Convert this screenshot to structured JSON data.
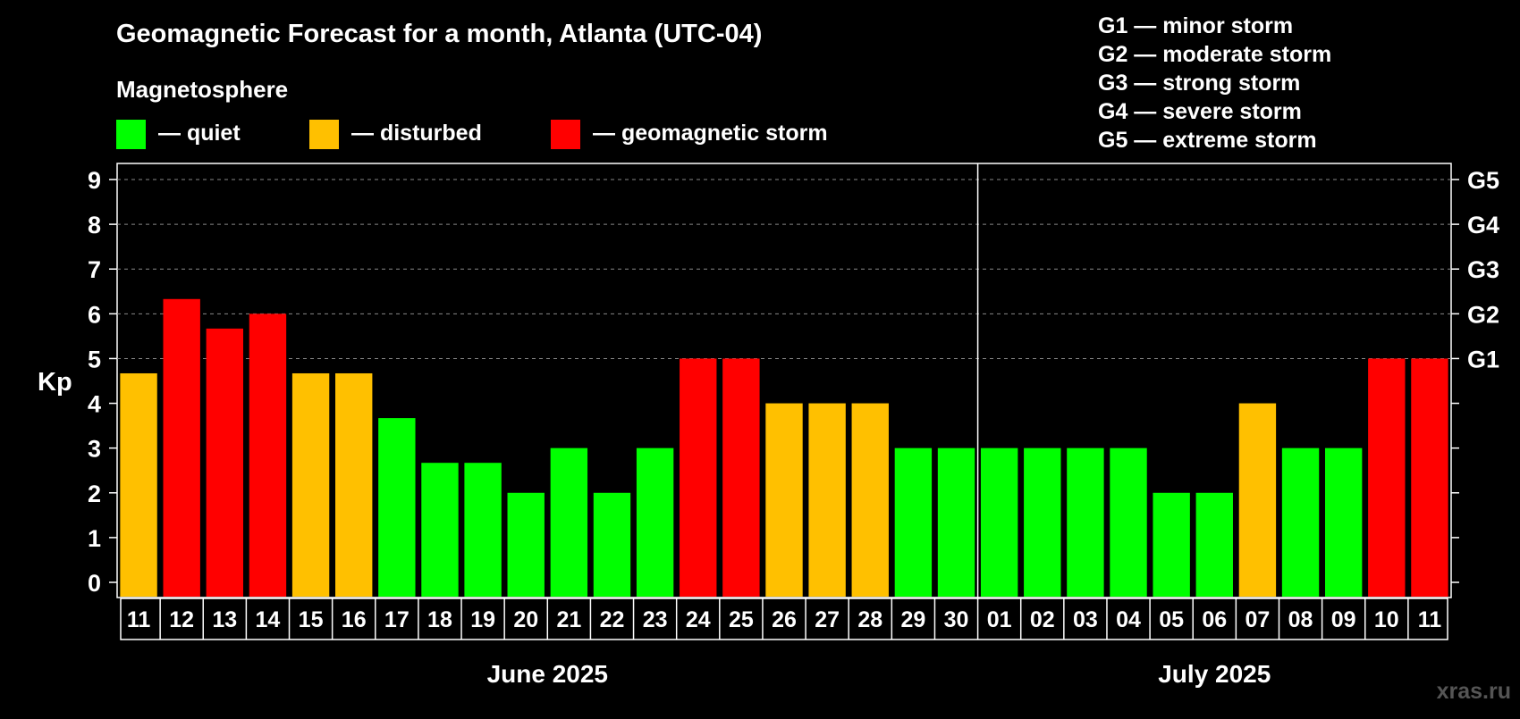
{
  "title": "Geomagnetic Forecast for a month, Atlanta (UTC-04)",
  "subtitle": "Magnetosphere",
  "legend": [
    {
      "key": "quiet",
      "color": "#00ff00",
      "label": "— quiet"
    },
    {
      "key": "disturbed",
      "color": "#ffc000",
      "label": "— disturbed"
    },
    {
      "key": "storm",
      "color": "#ff0000",
      "label": "— geomagnetic storm"
    }
  ],
  "g_legend": [
    "G1 — minor storm",
    "G2 — moderate storm",
    "G3 — strong storm",
    "G4 — severe storm",
    "G5 — extreme storm"
  ],
  "watermark": "xras.ru",
  "chart_data": {
    "type": "bar",
    "ylabel": "Kp",
    "ylim": [
      0,
      9
    ],
    "yticks": [
      "0",
      "1",
      "2",
      "3",
      "4",
      "5",
      "6",
      "7",
      "8",
      "9"
    ],
    "right_ticks": [
      {
        "y": 5,
        "label": "G1"
      },
      {
        "y": 6,
        "label": "G2"
      },
      {
        "y": 7,
        "label": "G3"
      },
      {
        "y": 8,
        "label": "G4"
      },
      {
        "y": 9,
        "label": "G5"
      }
    ],
    "grid": true,
    "categories": [
      "11",
      "12",
      "13",
      "14",
      "15",
      "16",
      "17",
      "18",
      "19",
      "20",
      "21",
      "22",
      "23",
      "24",
      "25",
      "26",
      "27",
      "28",
      "29",
      "30",
      "01",
      "02",
      "03",
      "04",
      "05",
      "06",
      "07",
      "08",
      "09",
      "10",
      "11"
    ],
    "values": [
      4.67,
      6.33,
      5.67,
      6.0,
      4.67,
      4.67,
      3.67,
      2.67,
      2.67,
      2.0,
      3.0,
      2.0,
      3.0,
      5.0,
      5.0,
      4.0,
      4.0,
      4.0,
      3.0,
      3.0,
      3.0,
      3.0,
      3.0,
      3.0,
      2.0,
      2.0,
      4.0,
      3.0,
      3.0,
      5.0,
      5.0
    ],
    "levels": [
      "disturbed",
      "storm",
      "storm",
      "storm",
      "disturbed",
      "disturbed",
      "quiet",
      "quiet",
      "quiet",
      "quiet",
      "quiet",
      "quiet",
      "quiet",
      "storm",
      "storm",
      "disturbed",
      "disturbed",
      "disturbed",
      "quiet",
      "quiet",
      "quiet",
      "quiet",
      "quiet",
      "quiet",
      "quiet",
      "quiet",
      "disturbed",
      "quiet",
      "quiet",
      "storm",
      "storm"
    ],
    "months": [
      {
        "label": "June 2025",
        "start": 0,
        "end": 19
      },
      {
        "label": "July 2025",
        "start": 20,
        "end": 30
      }
    ]
  }
}
